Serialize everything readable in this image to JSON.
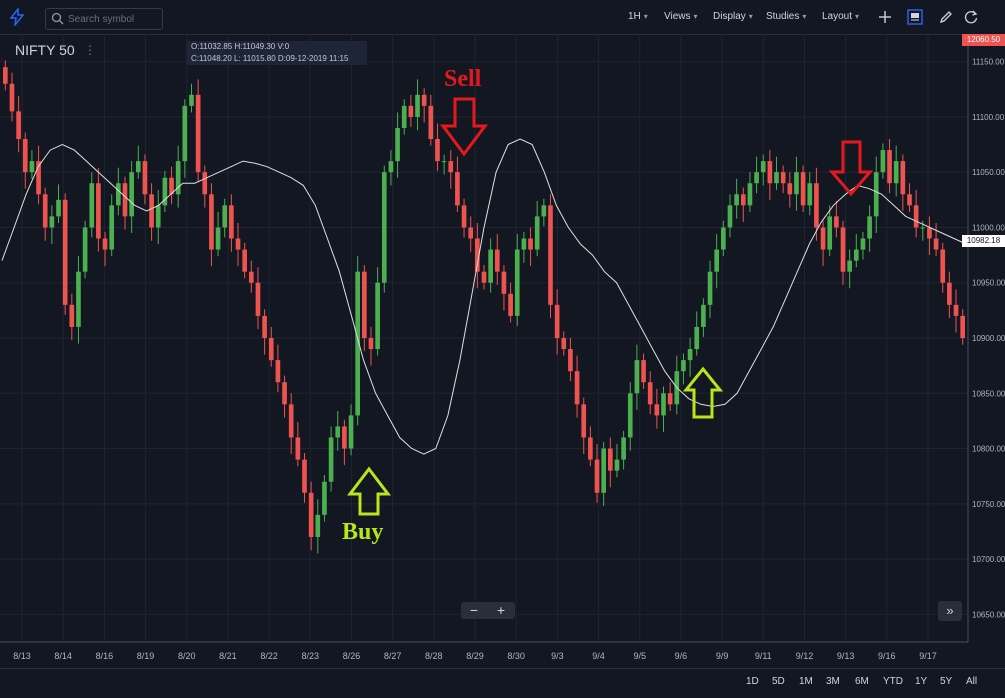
{
  "toolbar": {
    "search_placeholder": "Search symbol",
    "interval": "1H",
    "views": "Views",
    "display": "Display",
    "studies": "Studies",
    "layout": "Layout"
  },
  "symbol": "NIFTY 50",
  "ohlc": {
    "line1": "O:11032.85  H:11049.30  V:0",
    "line2": "C:11048.20  L: 11015.80  D:09-12-2019 11:15"
  },
  "price_badges": {
    "top": "12060.50",
    "current": "10982.18"
  },
  "annotations": {
    "sell": "Sell",
    "buy": "Buy"
  },
  "zoom": {
    "minus": "−",
    "plus": "+"
  },
  "scroll_right": "»",
  "ranges": [
    "1D",
    "5D",
    "1M",
    "3M",
    "6M",
    "YTD",
    "1Y",
    "5Y",
    "All"
  ],
  "colors": {
    "background": "#131722",
    "up": "#4caf50",
    "down": "#ef5350",
    "ma": "#e0e0e0",
    "sell": "#e5181e",
    "buy": "#b6e61c"
  },
  "chart_data": {
    "type": "candlestick",
    "ylim": [
      10625,
      11175
    ],
    "y_ticks": [
      10650,
      10700,
      10750,
      10800,
      10850,
      10900,
      10950,
      11000,
      11050,
      11100,
      11150
    ],
    "x_ticks": [
      "8/13",
      "8/14",
      "8/16",
      "8/19",
      "8/20",
      "8/21",
      "8/22",
      "8/23",
      "8/26",
      "8/27",
      "8/28",
      "8/29",
      "8/30",
      "9/3",
      "9/4",
      "9/5",
      "9/6",
      "9/9",
      "9/11",
      "9/12",
      "9/13",
      "9/16",
      "9/17"
    ],
    "closes": [
      11130,
      11105,
      11080,
      11050,
      11060,
      11030,
      11000,
      11010,
      11025,
      10930,
      10910,
      10960,
      11000,
      11040,
      10990,
      10980,
      11020,
      11040,
      11010,
      11050,
      11060,
      11030,
      11000,
      11020,
      11045,
      11030,
      11060,
      11110,
      11120,
      11050,
      11030,
      10980,
      11000,
      11020,
      10990,
      10980,
      10960,
      10950,
      10920,
      10900,
      10880,
      10860,
      10840,
      10810,
      10790,
      10760,
      10720,
      10740,
      10770,
      10810,
      10820,
      10800,
      10830,
      10960,
      10900,
      10890,
      10950,
      11050,
      11060,
      11090,
      11110,
      11100,
      11120,
      11110,
      11080,
      11060,
      11060,
      11050,
      11020,
      11000,
      10990,
      10960,
      10950,
      10980,
      10960,
      10940,
      10920,
      10980,
      10990,
      10980,
      11010,
      11020,
      10930,
      10900,
      10890,
      10870,
      10840,
      10810,
      10790,
      10760,
      10800,
      10780,
      10790,
      10810,
      10850,
      10880,
      10860,
      10840,
      10830,
      10850,
      10840,
      10870,
      10880,
      10890,
      10910,
      10930,
      10960,
      10980,
      11000,
      11020,
      11030,
      11020,
      11040,
      11050,
      11060,
      11040,
      11050,
      11040,
      11030,
      11050,
      11020,
      11040,
      11000,
      10980,
      11010,
      11000,
      10960,
      10970,
      10980,
      10990,
      11010,
      11050,
      11070,
      11040,
      11060,
      11030,
      11020,
      11000,
      11000,
      10990,
      10980,
      10950,
      10930,
      10920,
      10900
    ],
    "moving_average": {
      "start": 0,
      "values": [
        10970,
        11000,
        11030,
        11055,
        11070,
        11075,
        11070,
        11060,
        11050,
        11040,
        11030,
        11020,
        11015,
        11020,
        11030,
        11040,
        11040,
        11045,
        11050,
        11055,
        11060,
        11058,
        11055,
        11050,
        11045,
        11038,
        11020,
        10990,
        10960,
        10920,
        10880,
        10850,
        10830,
        10810,
        10800,
        10795,
        10800,
        10830,
        10880,
        10940,
        11000,
        11050,
        11075,
        11080,
        11075,
        11050,
        11020,
        11000,
        10985,
        10975,
        10960,
        10950,
        10930,
        10910,
        10890,
        10870,
        10855,
        10845,
        10840,
        10838,
        10840,
        10850,
        10870,
        10890,
        10910,
        10935,
        10960,
        10985,
        11005,
        11020,
        11030,
        11038,
        11035,
        11030,
        11020,
        11010,
        11005,
        11000,
        10995,
        10990,
        10985
      ]
    },
    "series": [
      {
        "name": "NIFTY 50",
        "values": []
      }
    ]
  }
}
